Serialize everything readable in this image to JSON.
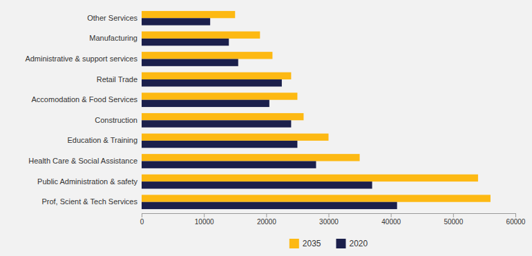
{
  "chart_data": {
    "type": "bar",
    "orientation": "horizontal",
    "categories": [
      "Other Services",
      "Manufacturing",
      "Administrative & support services",
      "Retail Trade",
      "Accomodation & Food Services",
      "Construction",
      "Education & Training",
      "Health Care & Social Assistance",
      "Public Administration & safety",
      "Prof, Scient & Tech Services"
    ],
    "series": [
      {
        "name": "2035",
        "color": "#FDB913",
        "values": [
          15000,
          19000,
          21000,
          24000,
          25000,
          26000,
          30000,
          35000,
          54000,
          56000
        ]
      },
      {
        "name": "2020",
        "color": "#1B1F4B",
        "values": [
          11000,
          14000,
          15500,
          22500,
          20500,
          24000,
          25000,
          28000,
          37000,
          41000
        ]
      }
    ],
    "xlim": [
      0,
      60000
    ],
    "xticks": [
      0,
      10000,
      20000,
      30000,
      40000,
      50000,
      60000
    ],
    "grid": false,
    "legend": "bottom"
  }
}
